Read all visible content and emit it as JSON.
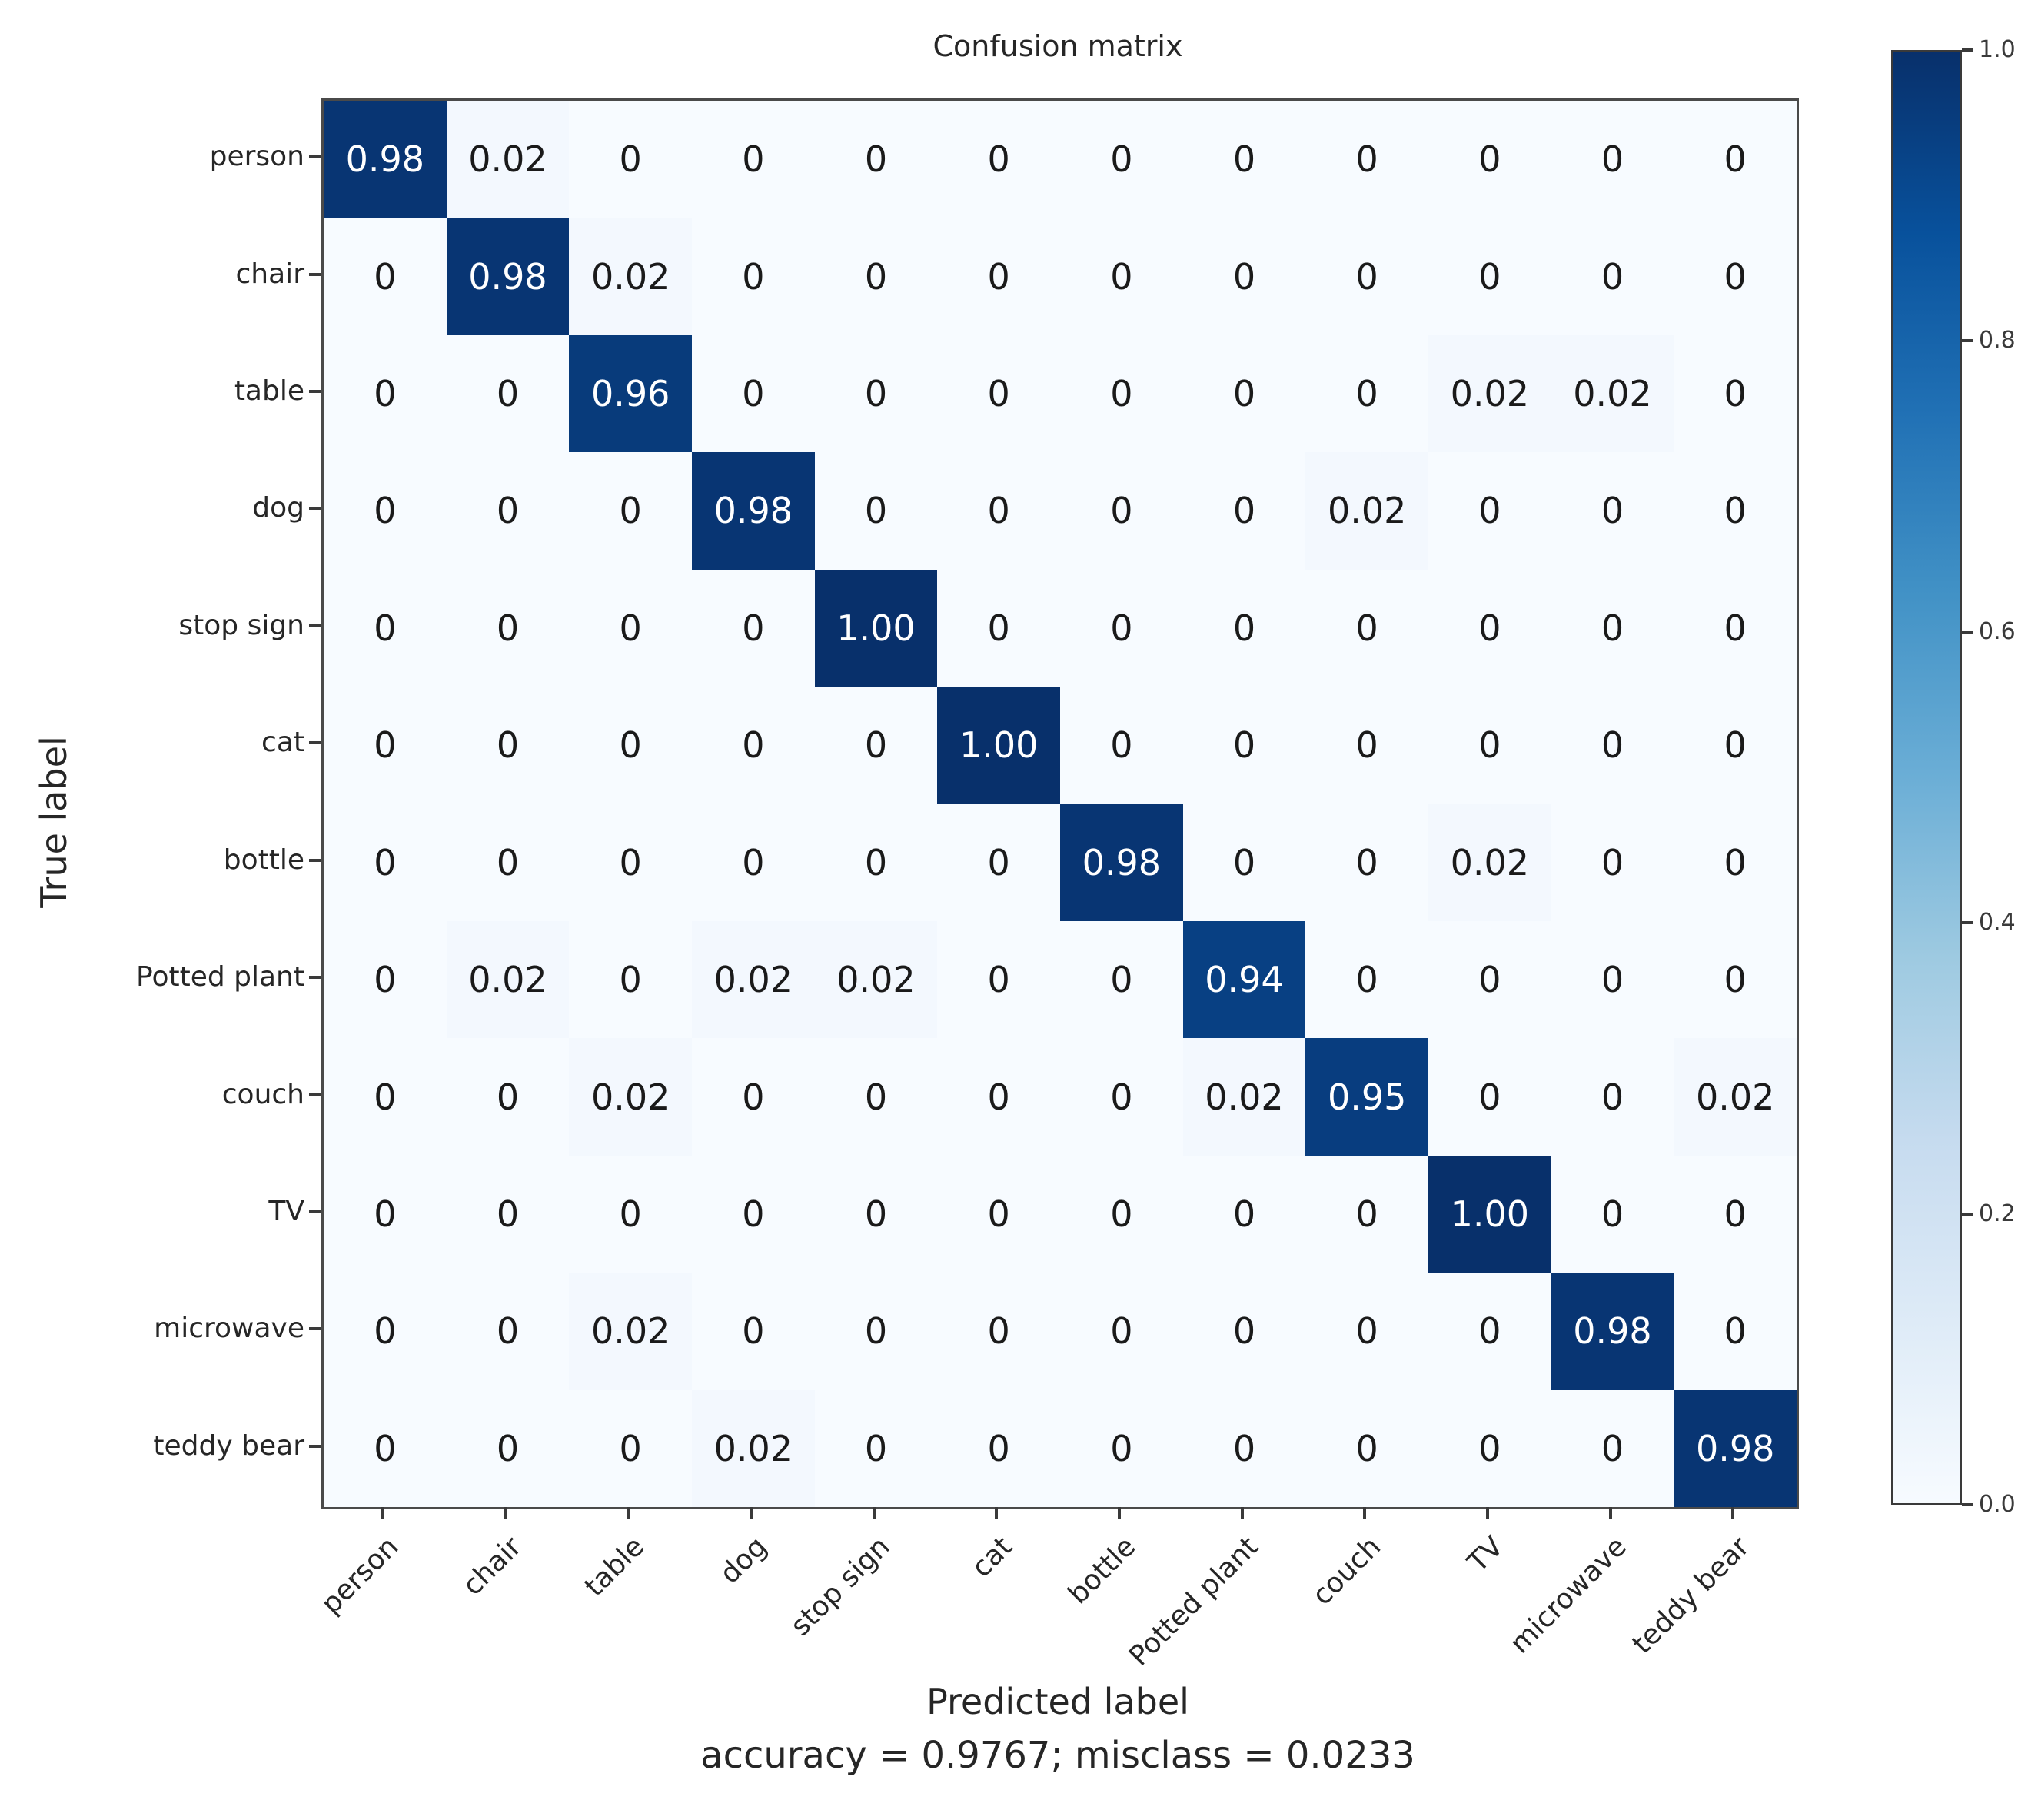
{
  "figure": {
    "background": "#ffffff"
  },
  "chart_data": {
    "type": "heatmap",
    "title": "Confusion matrix",
    "xlabel": "Predicted label",
    "ylabel": "True label",
    "footer": "accuracy = 0.9767; misclass = 0.0233",
    "categories": [
      "person",
      "chair",
      "table",
      "dog",
      "stop sign",
      "cat",
      "bottle",
      "Potted plant",
      "couch",
      "TV",
      "microwave",
      "teddy bear"
    ],
    "rows": [
      {
        "label": "person",
        "values": [
          "0.98",
          "0.02",
          "0",
          "0",
          "0",
          "0",
          "0",
          "0",
          "0",
          "0",
          "0",
          "0"
        ]
      },
      {
        "label": "chair",
        "values": [
          "0",
          "0.98",
          "0.02",
          "0",
          "0",
          "0",
          "0",
          "0",
          "0",
          "0",
          "0",
          "0"
        ]
      },
      {
        "label": "table",
        "values": [
          "0",
          "0",
          "0.96",
          "0",
          "0",
          "0",
          "0",
          "0",
          "0",
          "0.02",
          "0.02",
          "0"
        ]
      },
      {
        "label": "dog",
        "values": [
          "0",
          "0",
          "0",
          "0.98",
          "0",
          "0",
          "0",
          "0",
          "0.02",
          "0",
          "0",
          "0"
        ]
      },
      {
        "label": "stop sign",
        "values": [
          "0",
          "0",
          "0",
          "0",
          "1.00",
          "0",
          "0",
          "0",
          "0",
          "0",
          "0",
          "0"
        ]
      },
      {
        "label": "cat",
        "values": [
          "0",
          "0",
          "0",
          "0",
          "0",
          "1.00",
          "0",
          "0",
          "0",
          "0",
          "0",
          "0"
        ]
      },
      {
        "label": "bottle",
        "values": [
          "0",
          "0",
          "0",
          "0",
          "0",
          "0",
          "0.98",
          "0",
          "0",
          "0.02",
          "0",
          "0"
        ]
      },
      {
        "label": "Potted plant",
        "values": [
          "0",
          "0.02",
          "0",
          "0.02",
          "0.02",
          "0",
          "0",
          "0.94",
          "0",
          "0",
          "0",
          "0"
        ]
      },
      {
        "label": "couch",
        "values": [
          "0",
          "0",
          "0.02",
          "0",
          "0",
          "0",
          "0",
          "0.02",
          "0.95",
          "0",
          "0",
          "0.02"
        ]
      },
      {
        "label": "TV",
        "values": [
          "0",
          "0",
          "0",
          "0",
          "0",
          "0",
          "0",
          "0",
          "0",
          "1.00",
          "0",
          "0"
        ]
      },
      {
        "label": "microwave",
        "values": [
          "0",
          "0",
          "0.02",
          "0",
          "0",
          "0",
          "0",
          "0",
          "0",
          "0",
          "0.98",
          "0"
        ]
      },
      {
        "label": "teddy bear",
        "values": [
          "0",
          "0",
          "0",
          "0.02",
          "0",
          "0",
          "0",
          "0",
          "0",
          "0",
          "0",
          "0.98"
        ]
      }
    ],
    "value_range": [
      0,
      1
    ],
    "grid": false,
    "colorbar": {
      "position": "right",
      "ticks": [
        "1.0",
        "0.8",
        "0.6",
        "0.4",
        "0.2",
        "0.0"
      ],
      "colormap": "Blues"
    },
    "colormap_stops": [
      [
        247,
        251,
        255
      ],
      [
        222,
        235,
        247
      ],
      [
        198,
        219,
        239
      ],
      [
        158,
        202,
        225
      ],
      [
        107,
        174,
        214
      ],
      [
        66,
        146,
        198
      ],
      [
        33,
        113,
        181
      ],
      [
        8,
        81,
        156
      ],
      [
        8,
        48,
        107
      ]
    ],
    "text_colors": {
      "light": "#ffffff",
      "dark": "#1a1a1a"
    }
  }
}
